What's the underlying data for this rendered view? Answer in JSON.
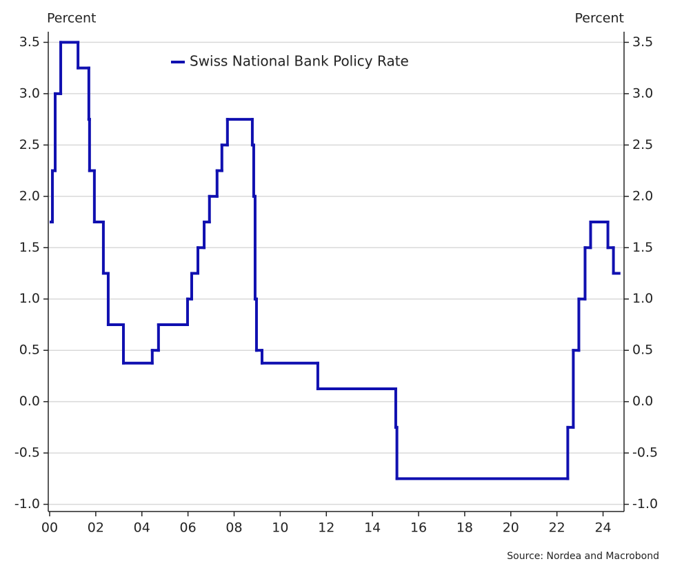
{
  "chart_data": {
    "type": "step",
    "y_label": "Percent",
    "y2_label": "Percent",
    "source": "Source: Nordea and Macrobond",
    "grid": true,
    "legend": "top-center",
    "xlim": [
      0,
      25
    ],
    "xticks": [
      {
        "value": 0,
        "label": "00"
      },
      {
        "value": 2,
        "label": "02"
      },
      {
        "value": 4,
        "label": "04"
      },
      {
        "value": 6,
        "label": "06"
      },
      {
        "value": 8,
        "label": "08"
      },
      10,
      12,
      14,
      16,
      18,
      20,
      22,
      24
    ],
    "ylim": [
      -1.07,
      3.57
    ],
    "yticks": [
      {
        "value": -1,
        "label": "-1.0"
      },
      -0.5,
      {
        "value": 0,
        "label": "0.0"
      },
      0.5,
      {
        "value": 1,
        "label": "1.0"
      },
      1.5,
      {
        "value": 2,
        "label": "2.0"
      },
      2.5,
      {
        "value": 3,
        "label": "3.0"
      },
      3.5
    ],
    "y2lim": [
      -1.07,
      3.57
    ],
    "y2ticks": [
      {
        "value": -1,
        "label": "-1.0"
      },
      -0.5,
      {
        "value": 0,
        "label": "0.0"
      },
      0.5,
      {
        "value": 1,
        "label": "1.0"
      },
      1.5,
      {
        "value": 2,
        "label": "2.0"
      },
      2.5,
      {
        "value": 3,
        "label": "3.0"
      },
      3.5
    ],
    "series": [
      {
        "name": "Swiss National Bank Policy Rate",
        "color": "#1010b0",
        "x": [
          0.06,
          0.12,
          0.24,
          0.48,
          1.23,
          1.7,
          1.73,
          1.94,
          2.33,
          2.54,
          3.2,
          4.45,
          4.72,
          5.98,
          6.16,
          6.43,
          6.7,
          6.93,
          7.26,
          7.47,
          7.71,
          8.79,
          8.85,
          8.91,
          8.97,
          9.21,
          11.63,
          15.01,
          15.06,
          22.47,
          22.71,
          22.95,
          23.22,
          23.46,
          24.21,
          24.45,
          24.69
        ],
        "values": [
          1.75,
          2.25,
          3.0,
          3.5,
          3.25,
          2.75,
          2.25,
          1.75,
          1.25,
          0.75,
          0.375,
          0.5,
          0.75,
          1.0,
          1.25,
          1.5,
          1.75,
          2.0,
          2.25,
          2.5,
          2.75,
          2.5,
          2.0,
          1.0,
          0.5,
          0.375,
          0.125,
          -0.25,
          -0.75,
          -0.25,
          0.5,
          1.0,
          1.5,
          1.75,
          1.5,
          1.25,
          1.25
        ]
      }
    ]
  }
}
